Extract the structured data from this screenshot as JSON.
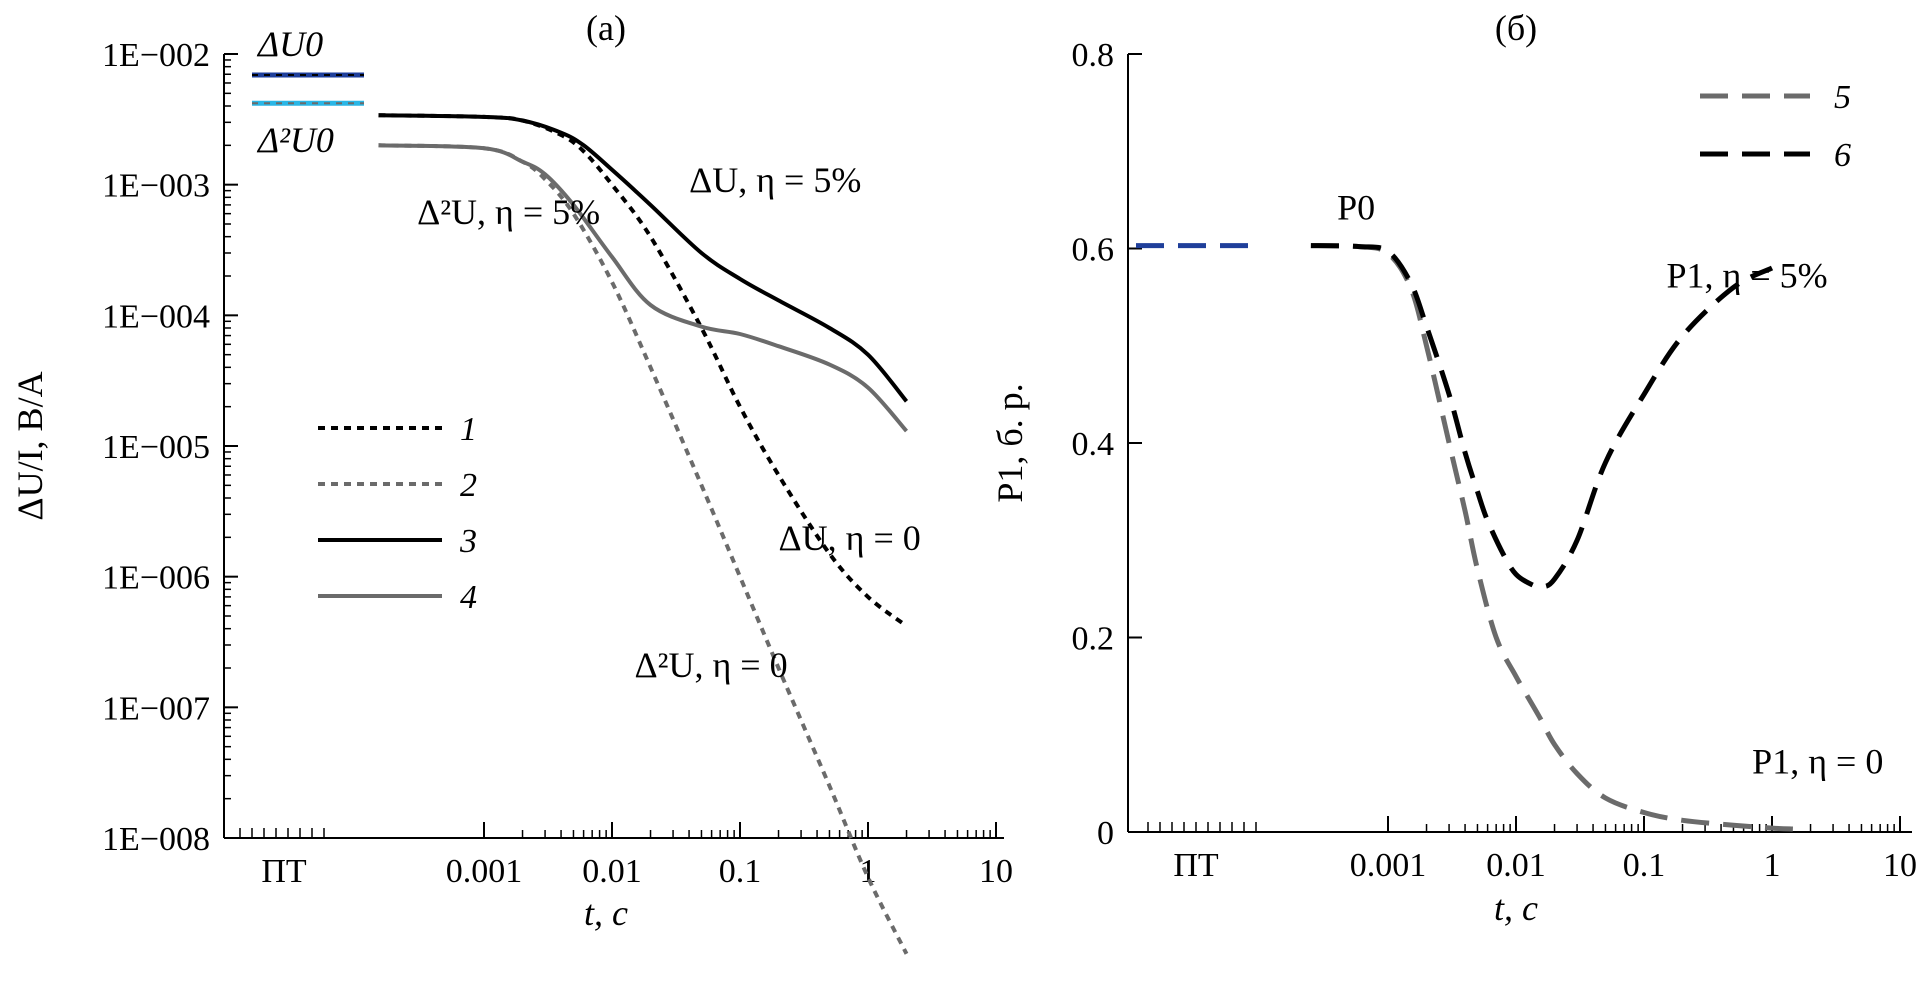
{
  "chart_data": [
    {
      "panel": "(a)",
      "type": "line",
      "scale": {
        "x": "log",
        "y": "log"
      },
      "xlabel": "t, с",
      "ylabel": "ΔU/I, В/А",
      "xlim": [
        0.0001,
        10
      ],
      "ylim": [
        1e-08,
        0.01
      ],
      "x_ticks": [
        {
          "label": "ПТ",
          "value": "ПТ"
        },
        {
          "label": "0.001",
          "value": 0.001
        },
        {
          "label": "0.01",
          "value": 0.01
        },
        {
          "label": "0.1",
          "value": 0.1
        },
        {
          "label": "1",
          "value": 1
        },
        {
          "label": "10",
          "value": 10
        }
      ],
      "y_ticks": [
        {
          "label": "1E−002",
          "value": 0.01
        },
        {
          "label": "1E−003",
          "value": 0.001
        },
        {
          "label": "1E−004",
          "value": 0.0001
        },
        {
          "label": "1E−005",
          "value": 1e-05
        },
        {
          "label": "1E−006",
          "value": 1e-06
        },
        {
          "label": "1E−007",
          "value": 1e-07
        },
        {
          "label": "1E−008",
          "value": 1e-08
        }
      ],
      "grid": false,
      "legend": "center-left",
      "reference_levels": [
        {
          "label": "ΔU0",
          "value": 0.0069,
          "color": "#1f3f9a"
        },
        {
          "label": "Δ²U0",
          "value": 0.0042,
          "color": "#29b6e6"
        }
      ],
      "series": [
        {
          "name": "1",
          "style": "dotted",
          "color": "#000000",
          "x": [
            0.00015,
            0.001,
            0.002,
            0.004,
            0.006,
            0.01,
            0.02,
            0.05,
            0.1,
            0.2,
            0.5,
            1,
            2
          ],
          "y": [
            0.0034,
            0.0033,
            0.0031,
            0.0024,
            0.0018,
            0.001,
            0.0004,
            8e-05,
            2e-05,
            6e-06,
            1.5e-06,
            7e-07,
            4.2e-07
          ]
        },
        {
          "name": "2",
          "style": "dotted",
          "color": "#6b6b6b",
          "x": [
            0.00015,
            0.001,
            0.002,
            0.003,
            0.005,
            0.01,
            0.02,
            0.05,
            0.1,
            0.2,
            0.5,
            1,
            2
          ],
          "y": [
            0.002,
            0.0019,
            0.0015,
            0.0011,
            0.0006,
            0.00018,
            4e-05,
            5e-06,
            1e-06,
            2e-07,
            2.5e-08,
            5e-09,
            1.3e-09
          ]
        },
        {
          "name": "3",
          "style": "solid",
          "color": "#000000",
          "x": [
            0.00015,
            0.001,
            0.002,
            0.004,
            0.006,
            0.01,
            0.02,
            0.05,
            0.1,
            0.2,
            0.5,
            1,
            2
          ],
          "y": [
            0.0034,
            0.0033,
            0.0031,
            0.0025,
            0.002,
            0.0013,
            0.0007,
            0.0003,
            0.00019,
            0.00013,
            8e-05,
            5e-05,
            2.2e-05
          ]
        },
        {
          "name": "4",
          "style": "solid",
          "color": "#6b6b6b",
          "x": [
            0.00015,
            0.001,
            0.002,
            0.003,
            0.005,
            0.01,
            0.02,
            0.05,
            0.1,
            0.2,
            0.5,
            1,
            2
          ],
          "y": [
            0.002,
            0.0019,
            0.0015,
            0.0012,
            0.0007,
            0.00028,
            0.00012,
            8.2e-05,
            7.2e-05,
            5.8e-05,
            4.2e-05,
            2.8e-05,
            1.3e-05
          ]
        }
      ],
      "annotations": [
        {
          "text": "ΔU, η = 5%",
          "x": 0.04,
          "y": 0.00088
        },
        {
          "text": "Δ²U, η = 5%",
          "x": 0.0003,
          "y": 0.0005
        },
        {
          "text": "ΔU, η = 0",
          "x": 0.2,
          "y": 1.6e-06
        },
        {
          "text": "Δ²U, η = 0",
          "x": 0.015,
          "y": 1.7e-07
        }
      ]
    },
    {
      "panel": "(б)",
      "type": "line",
      "scale": {
        "x": "log",
        "y": "linear"
      },
      "xlabel": "t, с",
      "ylabel": "P1, б. р.",
      "xlim": [
        0.0001,
        10
      ],
      "ylim": [
        0,
        0.8
      ],
      "x_ticks": [
        {
          "label": "ПТ",
          "value": "ПТ"
        },
        {
          "label": "0.001",
          "value": 0.001
        },
        {
          "label": "0.01",
          "value": 0.01
        },
        {
          "label": "0.1",
          "value": 0.1
        },
        {
          "label": "1",
          "value": 1
        },
        {
          "label": "10",
          "value": 10
        }
      ],
      "y_ticks": [
        {
          "label": "0",
          "value": 0
        },
        {
          "label": "0.2",
          "value": 0.2
        },
        {
          "label": "0.4",
          "value": 0.4
        },
        {
          "label": "0.6",
          "value": 0.6
        },
        {
          "label": "0.8",
          "value": 0.8
        }
      ],
      "grid": false,
      "legend": "top-right",
      "reference_levels": [
        {
          "label": "P0",
          "value": 0.603,
          "color": "#1f3f9a"
        }
      ],
      "series": [
        {
          "name": "5",
          "style": "dashed",
          "color": "#6b6b6b",
          "x": [
            0.00025,
            0.0006,
            0.001,
            0.0015,
            0.002,
            0.003,
            0.004,
            0.005,
            0.007,
            0.01,
            0.015,
            0.02,
            0.03,
            0.05,
            0.1,
            0.2,
            0.5,
            1,
            1.5
          ],
          "y": [
            0.603,
            0.602,
            0.595,
            0.56,
            0.5,
            0.4,
            0.33,
            0.27,
            0.2,
            0.16,
            0.12,
            0.09,
            0.06,
            0.035,
            0.02,
            0.012,
            0.007,
            0.004,
            0.003
          ]
        },
        {
          "name": "6",
          "style": "dashed",
          "color": "#000000",
          "x": [
            0.00025,
            0.0006,
            0.001,
            0.0015,
            0.002,
            0.003,
            0.004,
            0.005,
            0.006,
            0.008,
            0.01,
            0.013,
            0.016,
            0.02,
            0.03,
            0.05,
            0.1,
            0.2,
            0.5,
            1
          ],
          "y": [
            0.603,
            0.602,
            0.597,
            0.565,
            0.52,
            0.45,
            0.39,
            0.35,
            0.32,
            0.285,
            0.265,
            0.255,
            0.252,
            0.26,
            0.3,
            0.38,
            0.45,
            0.51,
            0.56,
            0.58
          ]
        }
      ],
      "annotations": [
        {
          "text": "P0",
          "x": 0.0004,
          "y": 0.63
        },
        {
          "text": "P1, η = 5%",
          "x": 0.15,
          "y": 0.56
        },
        {
          "text": "P1, η = 0",
          "x": 0.7,
          "y": 0.06
        }
      ]
    }
  ]
}
